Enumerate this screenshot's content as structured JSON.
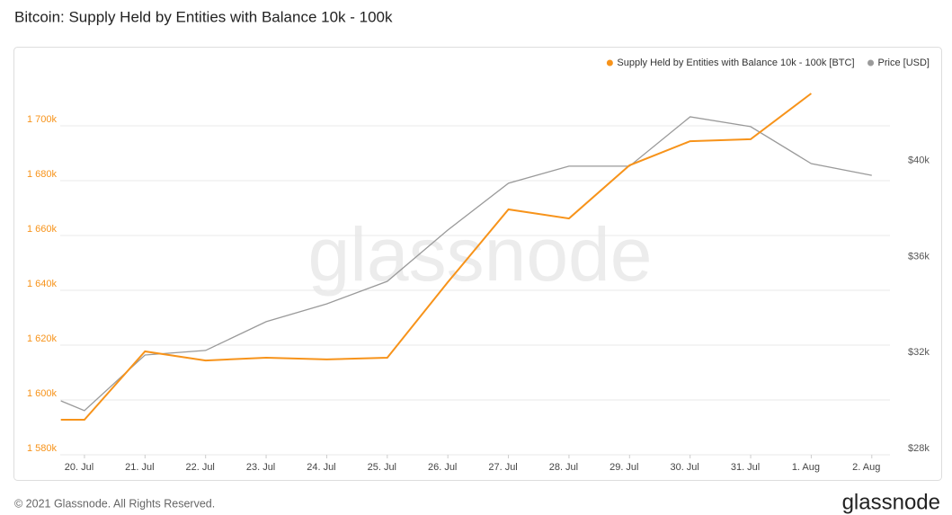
{
  "chart_data": {
    "type": "line",
    "title": "Bitcoin: Supply Held by Entities with Balance 10k - 100k",
    "x": [
      0.61,
      1,
      2,
      3,
      4,
      5,
      6,
      7,
      8,
      9,
      10,
      11,
      12,
      13,
      14
    ],
    "xlim": [
      0.6,
      14.3
    ],
    "xticks": [
      {
        "value": 1,
        "label": "20. Jul"
      },
      {
        "value": 2,
        "label": "21. Jul"
      },
      {
        "value": 3,
        "label": "22. Jul"
      },
      {
        "value": 4,
        "label": "23. Jul"
      },
      {
        "value": 5,
        "label": "24. Jul"
      },
      {
        "value": 6,
        "label": "25. Jul"
      },
      {
        "value": 7,
        "label": "26. Jul"
      },
      {
        "value": 8,
        "label": "27. Jul"
      },
      {
        "value": 9,
        "label": "28. Jul"
      },
      {
        "value": 10,
        "label": "29. Jul"
      },
      {
        "value": 11,
        "label": "30. Jul"
      },
      {
        "value": 12,
        "label": "31. Jul"
      },
      {
        "value": 13,
        "label": "1. Aug"
      },
      {
        "value": 14,
        "label": "2. Aug"
      }
    ],
    "ylim": [
      1580000,
      1720000
    ],
    "yticks": [
      {
        "value": 1580000,
        "label": "1 580k"
      },
      {
        "value": 1600000,
        "label": "1 600k"
      },
      {
        "value": 1620000,
        "label": "1 620k"
      },
      {
        "value": 1640000,
        "label": "1 640k"
      },
      {
        "value": 1660000,
        "label": "1 660k"
      },
      {
        "value": 1680000,
        "label": "1 680k"
      },
      {
        "value": 1700000,
        "label": "1 700k"
      }
    ],
    "y2lim": [
      28000,
      44000
    ],
    "y2ticks": [
      {
        "value": 28000,
        "label": "$28k"
      },
      {
        "value": 32000,
        "label": "$32k"
      },
      {
        "value": 36000,
        "label": "$36k"
      },
      {
        "value": 40000,
        "label": "$40k"
      }
    ],
    "grid": true,
    "legend": "top-right",
    "watermark": "glassnode",
    "series": [
      {
        "name": "Supply Held by Entities with Balance 10k - 100k [BTC]",
        "color": "#f7931a",
        "values": [
          1592800,
          1592800,
          1617700,
          1614400,
          1615400,
          1614800,
          1615400,
          1643000,
          1669500,
          1666200,
          1685600,
          1694400,
          1695100,
          1711800,
          null
        ]
      },
      {
        "name": "Price [USD]",
        "color": "#9a9a9a",
        "axis": "y2",
        "values": [
          30250,
          29840,
          32160,
          32350,
          33550,
          34290,
          35230,
          37370,
          39320,
          40030,
          40030,
          42090,
          41680,
          40140,
          39650
        ]
      }
    ]
  },
  "footer": {
    "copyright": "© 2021 Glassnode. All Rights Reserved.",
    "logo": "glassnode"
  }
}
